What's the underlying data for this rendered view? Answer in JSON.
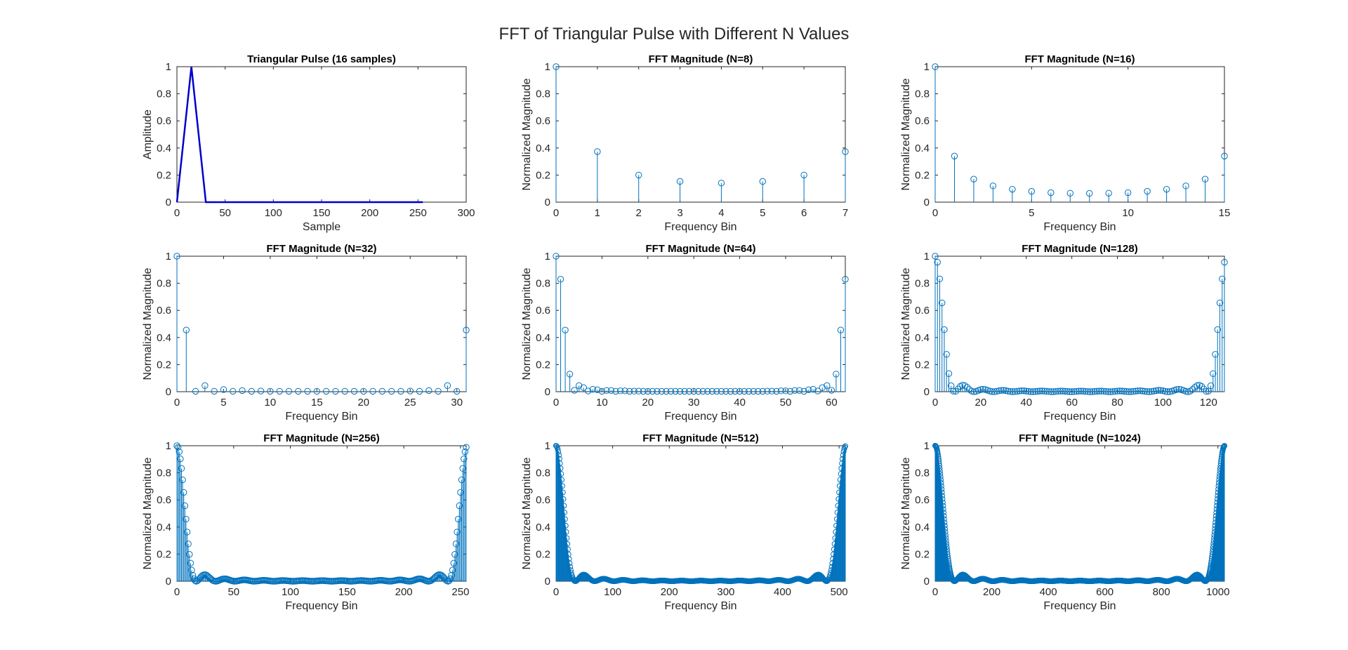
{
  "figure": {
    "title": "FFT of Triangular Pulse with Different N Values"
  },
  "colors": {
    "pulse_line": "#0000CC",
    "stem": "#0072BD",
    "axes": "#262626",
    "background": "#FFFFFF"
  },
  "chart_data": [
    {
      "type": "line",
      "title": "Triangular Pulse (16 samples)",
      "xlabel": "Sample",
      "ylabel": "Amplitude",
      "xlim": [
        0,
        300
      ],
      "ylim": [
        0,
        1
      ],
      "xticks": [
        0,
        50,
        100,
        150,
        200,
        250,
        300
      ],
      "yticks": [
        0,
        0.2,
        0.4,
        0.6,
        0.8,
        1
      ],
      "x": [
        0,
        15,
        30,
        255
      ],
      "y": [
        0,
        1,
        0,
        0
      ]
    },
    {
      "type": "stem",
      "title": "FFT Magnitude (N=8)",
      "xlabel": "Frequency Bin",
      "ylabel": "Normalized Magnitude",
      "N": 8,
      "xlim": [
        0,
        7
      ],
      "ylim": [
        0,
        1
      ],
      "xticks": [
        0,
        1,
        2,
        3,
        4,
        5,
        6,
        7
      ],
      "yticks": [
        0,
        0.2,
        0.4,
        0.6,
        0.8,
        1
      ],
      "values": [
        1,
        0.373,
        0.2,
        0.153,
        0.141,
        0.153,
        0.2,
        0.373
      ]
    },
    {
      "type": "stem",
      "title": "FFT Magnitude (N=16)",
      "xlabel": "Frequency Bin",
      "ylabel": "Normalized Magnitude",
      "N": 16,
      "xlim": [
        0,
        15
      ],
      "ylim": [
        0,
        1
      ],
      "xticks": [
        0,
        5,
        10,
        15
      ],
      "yticks": [
        0,
        0.2,
        0.4,
        0.6,
        0.8,
        1
      ],
      "values": [
        1,
        0.34,
        0.17,
        0.12,
        0.095,
        0.08,
        0.07,
        0.066,
        0.065,
        0.066,
        0.07,
        0.08,
        0.095,
        0.12,
        0.17,
        0.34
      ]
    },
    {
      "type": "stem",
      "title": "FFT Magnitude (N=32)",
      "xlabel": "Frequency Bin",
      "ylabel": "Normalized Magnitude",
      "N": 32,
      "xlim": [
        0,
        31
      ],
      "ylim": [
        0,
        1
      ],
      "xticks": [
        0,
        5,
        10,
        15,
        20,
        25,
        30
      ],
      "yticks": [
        0,
        0.2,
        0.4,
        0.6,
        0.8,
        1
      ],
      "values": [
        1,
        0.455,
        0.003,
        0.045,
        0.003,
        0.016,
        0.003,
        0.008,
        0.003,
        0.005,
        0.003,
        0.003,
        0.003,
        0.003,
        0.003,
        0.003,
        0.003,
        0.003,
        0.003,
        0.003,
        0.003,
        0.003,
        0.003,
        0.003,
        0.003,
        0.005,
        0.003,
        0.008,
        0.003,
        0.045,
        0.003,
        0.455
      ]
    },
    {
      "type": "stem",
      "title": "FFT Magnitude (N=64)",
      "xlabel": "Frequency Bin",
      "ylabel": "Normalized Magnitude",
      "N": 64,
      "xlim": [
        0,
        63
      ],
      "ylim": [
        0,
        1
      ],
      "xticks": [
        0,
        10,
        20,
        30,
        40,
        50,
        60
      ],
      "yticks": [
        0,
        0.2,
        0.4,
        0.6,
        0.8,
        1
      ],
      "values": [
        1,
        0.83,
        0.455,
        0.13,
        0.01,
        0.045,
        0.03,
        0.005,
        0.018,
        0.014,
        0.003,
        0.009,
        0.009,
        0.003,
        0.006,
        0.006,
        0.003,
        0.004,
        0.004,
        0.003,
        0.003,
        0.003,
        0.003,
        0.003,
        0.003,
        0.003,
        0.003,
        0.003,
        0.003,
        0.003,
        0.003,
        0.003,
        0.003,
        0.003,
        0.003,
        0.003,
        0.003,
        0.003,
        0.003,
        0.003,
        0.003,
        0.003,
        0.003,
        0.003,
        0.003,
        0.003,
        0.004,
        0.004,
        0.003,
        0.006,
        0.006,
        0.003,
        0.009,
        0.009,
        0.003,
        0.014,
        0.018,
        0.005,
        0.03,
        0.045,
        0.01,
        0.13,
        0.455,
        0.83
      ]
    },
    {
      "type": "stem",
      "title": "FFT Magnitude (N=128)",
      "xlabel": "Frequency Bin",
      "ylabel": "Normalized Magnitude",
      "N": 128,
      "xlim": [
        0,
        127
      ],
      "ylim": [
        0,
        1
      ],
      "xticks": [
        0,
        20,
        40,
        60,
        80,
        100,
        120
      ],
      "yticks": [
        0,
        0.2,
        0.4,
        0.6,
        0.8,
        1
      ]
    },
    {
      "type": "stem",
      "title": "FFT Magnitude (N=256)",
      "xlabel": "Frequency Bin",
      "ylabel": "Normalized Magnitude",
      "N": 256,
      "xlim": [
        0,
        255
      ],
      "ylim": [
        0,
        1
      ],
      "xticks": [
        0,
        50,
        100,
        150,
        200,
        250
      ],
      "yticks": [
        0,
        0.2,
        0.4,
        0.6,
        0.8,
        1
      ]
    },
    {
      "type": "stem",
      "title": "FFT Magnitude (N=512)",
      "xlabel": "Frequency Bin",
      "ylabel": "Normalized Magnitude",
      "N": 512,
      "xlim": [
        0,
        511
      ],
      "ylim": [
        0,
        1
      ],
      "xticks": [
        0,
        100,
        200,
        300,
        400,
        500
      ],
      "yticks": [
        0,
        0.2,
        0.4,
        0.6,
        0.8,
        1
      ]
    },
    {
      "type": "stem",
      "title": "FFT Magnitude (N=1024)",
      "xlabel": "Frequency Bin",
      "ylabel": "Normalized Magnitude",
      "N": 1024,
      "xlim": [
        0,
        1023
      ],
      "ylim": [
        0,
        1
      ],
      "xticks": [
        0,
        200,
        400,
        600,
        800,
        1000
      ],
      "yticks": [
        0,
        0.2,
        0.4,
        0.6,
        0.8,
        1
      ]
    }
  ]
}
